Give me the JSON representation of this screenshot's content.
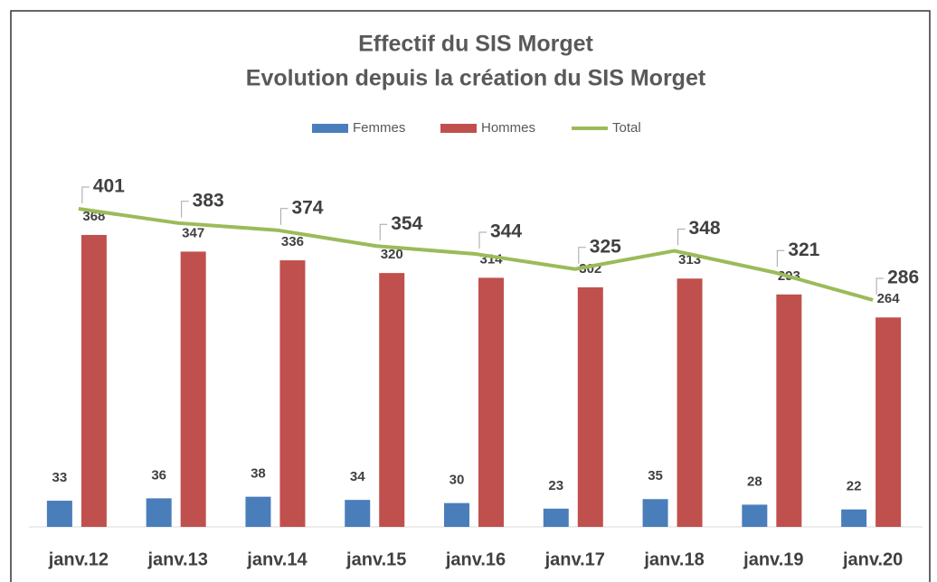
{
  "chart_data": {
    "type": "bar",
    "title": "Effectif du SIS Morget",
    "subtitle": "Evolution depuis la création du SIS Morget",
    "categories": [
      "janv.12",
      "janv.13",
      "janv.14",
      "janv.15",
      "janv.16",
      "janv.17",
      "janv.18",
      "janv.19",
      "janv.20"
    ],
    "series": [
      {
        "name": "Femmes",
        "color": "#4a7ebb",
        "values": [
          33,
          36,
          38,
          34,
          30,
          23,
          35,
          28,
          22
        ]
      },
      {
        "name": "Hommes",
        "color": "#c0504d",
        "values": [
          368,
          347,
          336,
          320,
          314,
          302,
          313,
          293,
          264
        ]
      },
      {
        "name": "Total",
        "type": "line",
        "color": "#9bbb59",
        "values": [
          401,
          383,
          374,
          354,
          344,
          325,
          348,
          321,
          286
        ]
      }
    ],
    "ylim": [
      0,
      450
    ],
    "legend": "top"
  }
}
